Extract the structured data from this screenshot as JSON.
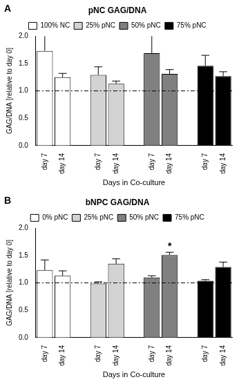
{
  "chart_data": [
    {
      "type": "bar",
      "panel": "A",
      "title": "pNC GAG/DNA",
      "x_label": "Days in Co-culture",
      "y_label": "GAG/DNA [relative to day 0]",
      "categories": [
        "day 7",
        "day 14",
        null,
        "day 7",
        "day 14",
        null,
        "day 7",
        "day 14",
        null,
        "day 7",
        "day 14"
      ],
      "series": [
        {
          "name": "100% NC",
          "color": "#ffffff",
          "values": [
            1.73,
            1.25,
            null,
            null,
            null,
            null,
            null,
            null,
            null,
            null,
            null
          ],
          "errors": [
            0.3,
            0.07,
            null,
            null,
            null,
            null,
            null,
            null,
            null,
            null,
            null
          ]
        },
        {
          "name": "25% pNC",
          "color": "#d3d3d3",
          "values": [
            null,
            null,
            null,
            1.29,
            1.13,
            null,
            null,
            null,
            null,
            null,
            null
          ],
          "errors": [
            null,
            null,
            null,
            0.15,
            0.05,
            null,
            null,
            null,
            null,
            null,
            null
          ]
        },
        {
          "name": "50% pNC",
          "color": "#808080",
          "values": [
            null,
            null,
            null,
            null,
            null,
            null,
            1.69,
            1.31,
            null,
            null,
            null
          ],
          "errors": [
            null,
            null,
            null,
            null,
            null,
            null,
            0.32,
            0.08,
            null,
            null,
            null
          ]
        },
        {
          "name": "75% pNC",
          "color": "#000000",
          "values": [
            null,
            null,
            null,
            null,
            null,
            null,
            null,
            null,
            null,
            1.46,
            1.27
          ],
          "errors": [
            null,
            null,
            null,
            null,
            null,
            null,
            null,
            null,
            null,
            0.19,
            0.08
          ]
        }
      ],
      "ylim": [
        0,
        2
      ],
      "yticks": [
        {
          "value": 0,
          "label": "0.0"
        },
        0.5,
        {
          "value": 1,
          "label": "1.0"
        },
        1.5,
        {
          "value": 2,
          "label": "2.0"
        }
      ],
      "reference_line": 1,
      "grid": false,
      "legend": "top"
    },
    {
      "type": "bar",
      "panel": "B",
      "title": "bNPC GAG/DNA",
      "x_label": "Days in Co-culture",
      "y_label": "GAG/DNA [relative to day 0]",
      "categories": [
        "day 7",
        "day 14",
        null,
        "day 7",
        "day 14",
        null,
        "day 7",
        "day 14",
        null,
        "day 7",
        "day 14"
      ],
      "series": [
        {
          "name": "0% pNC",
          "color": "#ffffff",
          "values": [
            1.23,
            1.13,
            null,
            null,
            null,
            null,
            null,
            null,
            null,
            null,
            null
          ],
          "errors": [
            0.19,
            0.09,
            null,
            null,
            null,
            null,
            null,
            null,
            null,
            null,
            null
          ]
        },
        {
          "name": "25% pNC",
          "color": "#d3d3d3",
          "values": [
            null,
            null,
            null,
            0.99,
            1.35,
            null,
            null,
            null,
            null,
            null,
            null
          ],
          "errors": [
            null,
            null,
            null,
            0.03,
            0.09,
            null,
            null,
            null,
            null,
            null,
            null
          ]
        },
        {
          "name": "50% pNC",
          "color": "#808080",
          "values": [
            null,
            null,
            null,
            null,
            null,
            null,
            1.1,
            1.51,
            null,
            null,
            null
          ],
          "errors": [
            null,
            null,
            null,
            null,
            null,
            null,
            0.03,
            0.05,
            null,
            null,
            null
          ]
        },
        {
          "name": "75% pNC",
          "color": "#000000",
          "values": [
            null,
            null,
            null,
            null,
            null,
            null,
            null,
            null,
            null,
            1.04,
            1.29
          ],
          "errors": [
            null,
            null,
            null,
            null,
            null,
            null,
            null,
            null,
            null,
            0.02,
            0.09
          ]
        }
      ],
      "ylim": [
        0,
        2
      ],
      "yticks": [
        {
          "value": 0,
          "label": "0.0"
        },
        0.5,
        {
          "value": 1,
          "label": "1.0"
        },
        1.5,
        {
          "value": 2,
          "label": "2.0"
        }
      ],
      "reference_line": 1,
      "annotations": [
        {
          "text": "*",
          "series": "50% pNC",
          "category": "day 14"
        }
      ],
      "grid": false,
      "legend": "top"
    }
  ]
}
